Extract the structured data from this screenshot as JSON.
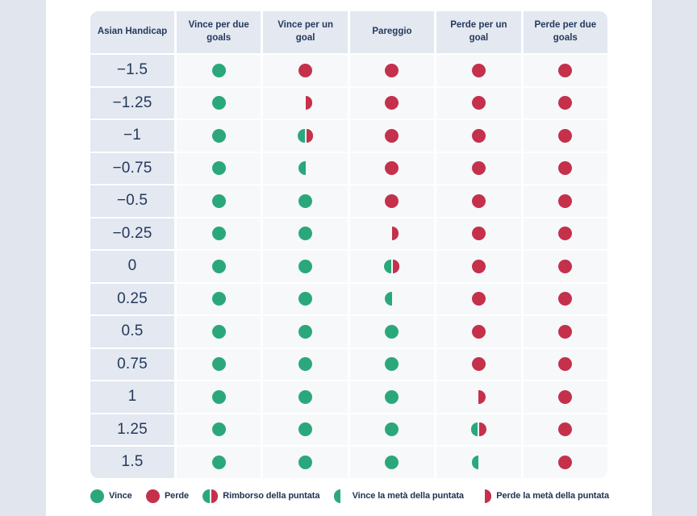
{
  "colors": {
    "win_green": "#2BA87B",
    "lose_red": "#C5304B",
    "header_cell_bg": "#E3E8F1",
    "data_cell_bg": "#F6F8FA",
    "text_navy": "#25395B",
    "page_bg": "#E0E5EE",
    "card_bg": "#FFFFFF"
  },
  "chart_data": {
    "type": "table",
    "title": "Asian Handicap outcomes matrix",
    "columns": [
      "Asian Handicap",
      "Vince per due goals",
      "Vince per un goal",
      "Pareggio",
      "Perde per un goal",
      "Perde per due goals"
    ],
    "rows": [
      {
        "handicap": "−1.5",
        "outcomes": [
          "win",
          "lose",
          "lose",
          "lose",
          "lose"
        ]
      },
      {
        "handicap": "−1.25",
        "outcomes": [
          "win",
          "half_lose",
          "lose",
          "lose",
          "lose"
        ]
      },
      {
        "handicap": "−1",
        "outcomes": [
          "win",
          "refund",
          "lose",
          "lose",
          "lose"
        ]
      },
      {
        "handicap": "−0.75",
        "outcomes": [
          "win",
          "half_win",
          "lose",
          "lose",
          "lose"
        ]
      },
      {
        "handicap": "−0.5",
        "outcomes": [
          "win",
          "win",
          "lose",
          "lose",
          "lose"
        ]
      },
      {
        "handicap": "−0.25",
        "outcomes": [
          "win",
          "win",
          "half_lose",
          "lose",
          "lose"
        ]
      },
      {
        "handicap": "0",
        "outcomes": [
          "win",
          "win",
          "refund",
          "lose",
          "lose"
        ]
      },
      {
        "handicap": "0.25",
        "outcomes": [
          "win",
          "win",
          "half_win",
          "lose",
          "lose"
        ]
      },
      {
        "handicap": "0.5",
        "outcomes": [
          "win",
          "win",
          "win",
          "lose",
          "lose"
        ]
      },
      {
        "handicap": "0.75",
        "outcomes": [
          "win",
          "win",
          "win",
          "lose",
          "lose"
        ]
      },
      {
        "handicap": "1",
        "outcomes": [
          "win",
          "win",
          "win",
          "half_lose",
          "lose"
        ]
      },
      {
        "handicap": "1.25",
        "outcomes": [
          "win",
          "win",
          "win",
          "refund",
          "lose"
        ]
      },
      {
        "handicap": "1.5",
        "outcomes": [
          "win",
          "win",
          "win",
          "half_win",
          "lose"
        ]
      }
    ],
    "legend": [
      {
        "icon": "win",
        "label": "Vince"
      },
      {
        "icon": "lose",
        "label": "Perde"
      },
      {
        "icon": "refund",
        "label": "Rimborso della puntata"
      },
      {
        "icon": "half_win",
        "label": "Vince la metà della puntata"
      },
      {
        "icon": "half_lose",
        "label": "Perde la metà della puntata"
      }
    ],
    "legend_position": "bottom"
  }
}
